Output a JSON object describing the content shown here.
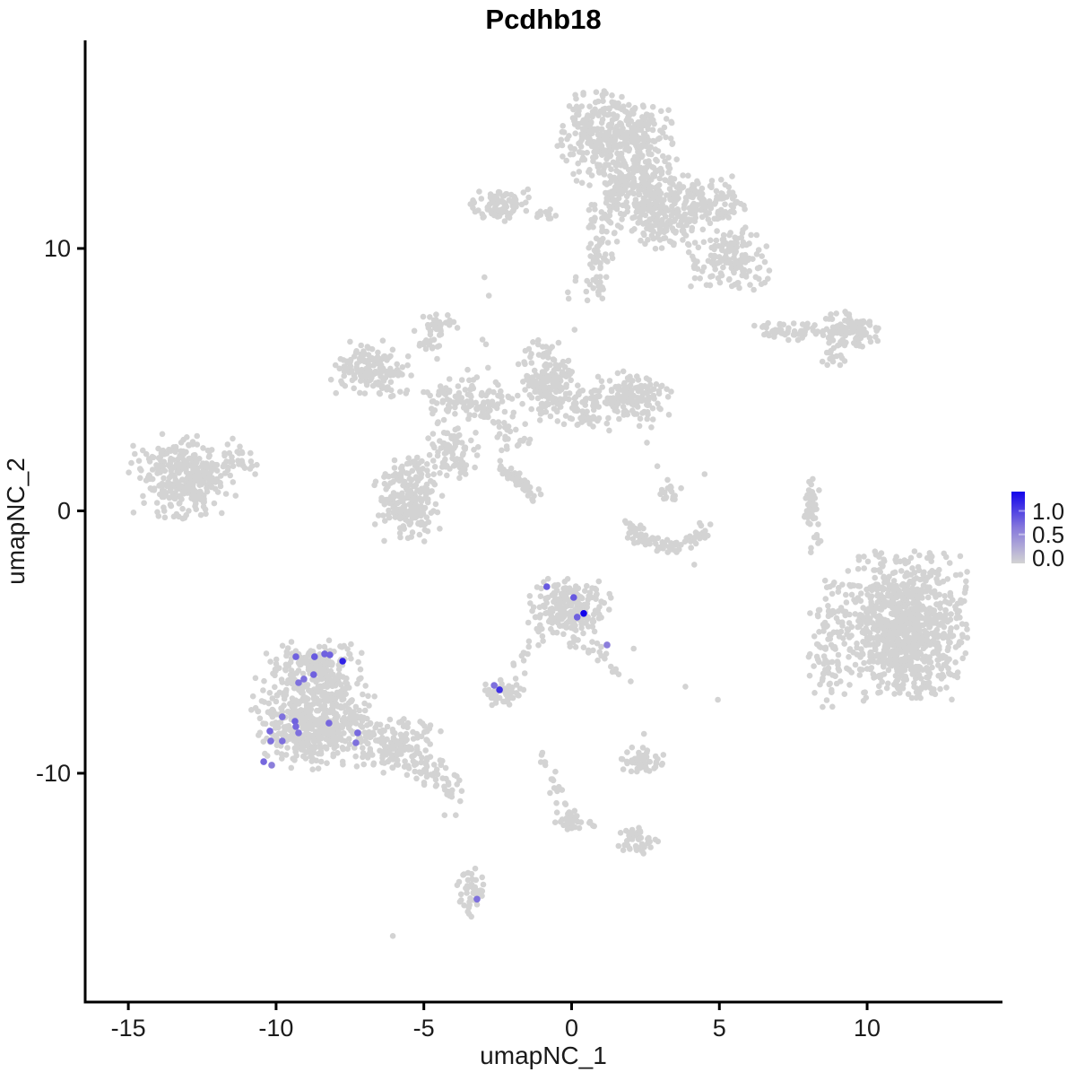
{
  "title": "Pcdhb18",
  "axes": {
    "x": {
      "label": "umapNC_1",
      "ticks": [
        -15,
        -10,
        -5,
        0,
        5,
        10
      ],
      "tick_labels": [
        "-15",
        "-10",
        "-5",
        "0",
        "5",
        "10"
      ]
    },
    "y": {
      "label": "umapNC_2",
      "ticks": [
        10,
        0,
        -10
      ],
      "tick_labels": [
        "10",
        "0",
        "-10"
      ]
    }
  },
  "legend": {
    "labels": [
      "1.0",
      "0.5",
      "0.0"
    ],
    "values": [
      1.0,
      0.5,
      0.0
    ],
    "max_value": 1.5,
    "color_high": "#1203EB",
    "color_mid": "#8678DC",
    "color_low": "#D3D3D3"
  },
  "chart_data": {
    "type": "scatter",
    "title": "Pcdhb18",
    "xlabel": "umapNC_1",
    "ylabel": "umapNC_2",
    "xlim": [
      -16.46,
      14.58
    ],
    "ylim": [
      -18.72,
      17.93
    ],
    "grid": false,
    "background_color": "#D3D3D3",
    "value_range": [
      0,
      1.5
    ],
    "background_clusters": [
      {
        "name": "top-core-upper",
        "type": "blob",
        "cx": 1.5,
        "cy": 14.2,
        "rx": 1.8,
        "ry": 1.7,
        "n": 430
      },
      {
        "name": "top-core-lower",
        "type": "blob",
        "cx": 2.4,
        "cy": 12.0,
        "rx": 1.5,
        "ry": 1.3,
        "n": 250
      },
      {
        "name": "top-right-wing",
        "type": "blob",
        "cx": 4.4,
        "cy": 11.7,
        "rx": 1.5,
        "ry": 1.0,
        "n": 140
      },
      {
        "name": "top-right-lower",
        "type": "blob",
        "cx": 5.3,
        "cy": 9.6,
        "rx": 1.3,
        "ry": 1.2,
        "n": 150
      },
      {
        "name": "top-left-arm",
        "type": "blob",
        "cx": 1.0,
        "cy": 10.4,
        "rx": 0.5,
        "ry": 1.6,
        "n": 60
      },
      {
        "name": "top-arm-tail",
        "type": "blob",
        "cx": 0.6,
        "cy": 8.6,
        "rx": 0.8,
        "ry": 0.6,
        "n": 22
      },
      {
        "name": "top-connector",
        "type": "blob",
        "cx": 3.1,
        "cy": 10.6,
        "rx": 1.0,
        "ry": 0.8,
        "n": 60
      },
      {
        "name": "topleft-small",
        "type": "blob",
        "cx": -2.45,
        "cy": 11.75,
        "rx": 0.95,
        "ry": 0.7,
        "n": 90
      },
      {
        "name": "topleft-arm",
        "type": "blob",
        "cx": -0.9,
        "cy": 11.3,
        "rx": 0.65,
        "ry": 0.25,
        "n": 13
      },
      {
        "name": "mid-top-tiny",
        "type": "blob",
        "cx": -4.4,
        "cy": 7.2,
        "rx": 0.4,
        "ry": 0.35,
        "n": 16
      },
      {
        "name": "topright-arm",
        "type": "blob",
        "cx": 7.5,
        "cy": 6.85,
        "rx": 1.3,
        "ry": 0.35,
        "n": 55
      },
      {
        "name": "topright-blob",
        "type": "blob",
        "cx": 9.4,
        "cy": 6.9,
        "rx": 0.9,
        "ry": 0.65,
        "n": 110
      },
      {
        "name": "topright-tail",
        "type": "blob",
        "cx": 8.85,
        "cy": 5.8,
        "rx": 0.5,
        "ry": 0.3,
        "n": 13
      },
      {
        "name": "farleft-main",
        "type": "blob",
        "cx": -13.1,
        "cy": 1.3,
        "rx": 1.75,
        "ry": 1.5,
        "n": 340
      },
      {
        "name": "farleft-arm",
        "type": "blob",
        "cx": -11.2,
        "cy": 1.8,
        "rx": 0.6,
        "ry": 0.5,
        "n": 22
      },
      {
        "name": "mid-upperleft",
        "type": "blob",
        "cx": -6.8,
        "cy": 5.4,
        "rx": 1.25,
        "ry": 1.05,
        "n": 150
      },
      {
        "name": "mid-top-sparse",
        "type": "blob",
        "cx": -4.8,
        "cy": 6.6,
        "rx": 0.5,
        "ry": 0.8,
        "n": 28
      },
      {
        "name": "mid-band",
        "type": "blob",
        "cx": -3.6,
        "cy": 4.1,
        "rx": 1.5,
        "ry": 0.9,
        "n": 110
      },
      {
        "name": "mid-lowerleft",
        "type": "blob",
        "cx": -5.5,
        "cy": 0.4,
        "rx": 1.15,
        "ry": 1.6,
        "n": 220
      },
      {
        "name": "mid-connector",
        "type": "blob",
        "cx": -4.0,
        "cy": 2.2,
        "rx": 0.95,
        "ry": 0.95,
        "n": 75
      },
      {
        "name": "mid-candle",
        "type": "blob",
        "cx": -0.8,
        "cy": 4.9,
        "rx": 0.95,
        "ry": 1.5,
        "n": 170
      },
      {
        "name": "mid-right-small",
        "type": "blob",
        "cx": 0.45,
        "cy": 3.9,
        "rx": 0.9,
        "ry": 0.8,
        "n": 65
      },
      {
        "name": "mid-right-blob",
        "type": "blob",
        "cx": 2.0,
        "cy": 4.3,
        "rx": 1.25,
        "ry": 1.05,
        "n": 150
      },
      {
        "name": "mid-streak",
        "type": "line",
        "x1": -2.5,
        "y1": 1.75,
        "x2": -1.15,
        "y2": 0.55,
        "w": 0.12,
        "n": 55
      },
      {
        "name": "mid-streak-head",
        "type": "blob",
        "cx": -2.0,
        "cy": 2.9,
        "rx": 0.8,
        "ry": 0.7,
        "n": 22
      },
      {
        "name": "mid-sparse-field",
        "type": "blob",
        "cx": -3.5,
        "cy": 4.8,
        "rx": 3.3,
        "ry": 2.3,
        "n": 26
      },
      {
        "name": "crescent",
        "type": "arc",
        "cx": 3.3,
        "cy": -0.5,
        "rx": 1.28,
        "ry": 0.82,
        "a0": 180,
        "a1": 360,
        "w": 0.16,
        "n": 85
      },
      {
        "name": "crescent-topblob",
        "type": "blob",
        "cx": 3.3,
        "cy": 0.75,
        "rx": 0.4,
        "ry": 0.45,
        "n": 18
      },
      {
        "name": "right-strip",
        "type": "blob",
        "cx": 8.1,
        "cy": 0.3,
        "rx": 0.25,
        "ry": 0.95,
        "n": 42
      },
      {
        "name": "right-strip-tail",
        "type": "blob",
        "cx": 8.2,
        "cy": -1.1,
        "rx": 0.3,
        "ry": 0.45,
        "n": 7
      },
      {
        "name": "right-big",
        "type": "blob",
        "cx": 11.3,
        "cy": -4.4,
        "rx": 1.9,
        "ry": 2.6,
        "n": 980
      },
      {
        "name": "right-big-fringe",
        "type": "blob",
        "cx": 8.8,
        "cy": -5.0,
        "rx": 0.75,
        "ry": 2.3,
        "n": 110
      },
      {
        "name": "center-main",
        "type": "blob",
        "cx": -0.1,
        "cy": -3.9,
        "rx": 1.3,
        "ry": 1.3,
        "n": 240
      },
      {
        "name": "center-tail-right",
        "type": "line",
        "x1": 0.55,
        "y1": -5.1,
        "x2": 1.4,
        "y2": -6.15,
        "w": 0.18,
        "n": 15
      },
      {
        "name": "center-tail-left",
        "type": "line",
        "x1": -1.3,
        "y1": -5.05,
        "x2": -2.0,
        "y2": -6.3,
        "w": 0.15,
        "n": 11
      },
      {
        "name": "small-below-center",
        "type": "blob",
        "cx": -2.3,
        "cy": -6.9,
        "rx": 0.7,
        "ry": 0.5,
        "n": 55
      },
      {
        "name": "botleft-toplobe",
        "type": "blob",
        "cx": -8.7,
        "cy": -6.0,
        "rx": 1.5,
        "ry": 1.0,
        "n": 190
      },
      {
        "name": "botleft-main",
        "type": "blob",
        "cx": -8.7,
        "cy": -8.05,
        "rx": 1.95,
        "ry": 1.65,
        "n": 540
      },
      {
        "name": "botleft-right-ext",
        "type": "blob",
        "cx": -5.9,
        "cy": -8.9,
        "rx": 1.4,
        "ry": 1.0,
        "n": 160
      },
      {
        "name": "botleft-tail",
        "type": "line",
        "x1": -4.9,
        "y1": -9.8,
        "x2": -3.7,
        "y2": -10.75,
        "w": 0.33,
        "n": 42
      },
      {
        "name": "trail-pair",
        "type": "blob",
        "cx": -0.9,
        "cy": -9.45,
        "rx": 0.18,
        "ry": 0.35,
        "n": 6
      },
      {
        "name": "trail-chain1",
        "type": "line",
        "x1": -0.75,
        "y1": -10.05,
        "x2": -0.45,
        "y2": -10.9,
        "w": 0.12,
        "n": 9
      },
      {
        "name": "trail-blob1",
        "type": "blob",
        "cx": -0.1,
        "cy": -11.7,
        "rx": 0.45,
        "ry": 0.7,
        "n": 40
      },
      {
        "name": "trail-chain2",
        "type": "line",
        "x1": 0.35,
        "y1": -11.8,
        "x2": 1.0,
        "y2": -12.0,
        "w": 0.1,
        "n": 7
      },
      {
        "name": "trail-blob2",
        "type": "blob",
        "cx": 2.15,
        "cy": -12.6,
        "rx": 0.75,
        "ry": 0.5,
        "n": 45
      },
      {
        "name": "trail-upper-small",
        "type": "blob",
        "cx": 2.35,
        "cy": -9.5,
        "rx": 0.7,
        "ry": 0.5,
        "n": 55
      },
      {
        "name": "bottom-small",
        "type": "blob",
        "cx": -3.4,
        "cy": -14.55,
        "rx": 0.5,
        "ry": 0.95,
        "n": 48
      }
    ],
    "background_singles": [
      [
        -2.95,
        8.9
      ],
      [
        -2.8,
        8.2
      ],
      [
        2.45,
        -8.5
      ],
      [
        -4.3,
        -11.6
      ],
      [
        -3.92,
        -11.6
      ],
      [
        -6.05,
        -16.2
      ],
      [
        3.85,
        -6.7
      ],
      [
        4.95,
        -7.2
      ],
      [
        2.1,
        -5.25
      ],
      [
        2.0,
        -6.5
      ],
      [
        2.55,
        2.6
      ],
      [
        2.9,
        1.7
      ],
      [
        4.5,
        1.4
      ],
      [
        4.15,
        -2.05
      ],
      [
        0.1,
        6.9
      ]
    ],
    "highlighted_points": [
      {
        "x": -0.84,
        "y": -2.89,
        "v": 0.95
      },
      {
        "x": 0.07,
        "y": -3.3,
        "v": 0.95
      },
      {
        "x": 0.19,
        "y": -4.05,
        "v": 0.9
      },
      {
        "x": 0.41,
        "y": -3.91,
        "v": 1.5
      },
      {
        "x": 1.2,
        "y": -5.11,
        "v": 0.7
      },
      {
        "x": -2.62,
        "y": -6.65,
        "v": 0.8
      },
      {
        "x": -2.44,
        "y": -6.82,
        "v": 1.2
      },
      {
        "x": -3.2,
        "y": -14.8,
        "v": 0.8
      },
      {
        "x": -9.33,
        "y": -5.56,
        "v": 0.9
      },
      {
        "x": -8.7,
        "y": -5.56,
        "v": 0.95
      },
      {
        "x": -8.36,
        "y": -5.45,
        "v": 0.9
      },
      {
        "x": -8.18,
        "y": -5.49,
        "v": 0.9
      },
      {
        "x": -7.75,
        "y": -5.73,
        "v": 1.3
      },
      {
        "x": -8.73,
        "y": -6.24,
        "v": 0.9
      },
      {
        "x": -9.06,
        "y": -6.41,
        "v": 0.8
      },
      {
        "x": -9.24,
        "y": -6.55,
        "v": 0.8
      },
      {
        "x": -9.79,
        "y": -7.85,
        "v": 0.8
      },
      {
        "x": -9.36,
        "y": -8.02,
        "v": 0.9
      },
      {
        "x": -9.33,
        "y": -8.22,
        "v": 0.85
      },
      {
        "x": -9.24,
        "y": -8.46,
        "v": 0.8
      },
      {
        "x": -10.21,
        "y": -8.39,
        "v": 0.85
      },
      {
        "x": -10.18,
        "y": -8.77,
        "v": 0.8
      },
      {
        "x": -9.79,
        "y": -8.77,
        "v": 0.8
      },
      {
        "x": -8.21,
        "y": -8.09,
        "v": 0.85
      },
      {
        "x": -7.24,
        "y": -8.46,
        "v": 0.85
      },
      {
        "x": -7.3,
        "y": -8.84,
        "v": 0.8
      },
      {
        "x": -10.42,
        "y": -9.56,
        "v": 0.85
      },
      {
        "x": -10.15,
        "y": -9.69,
        "v": 0.7
      }
    ]
  }
}
